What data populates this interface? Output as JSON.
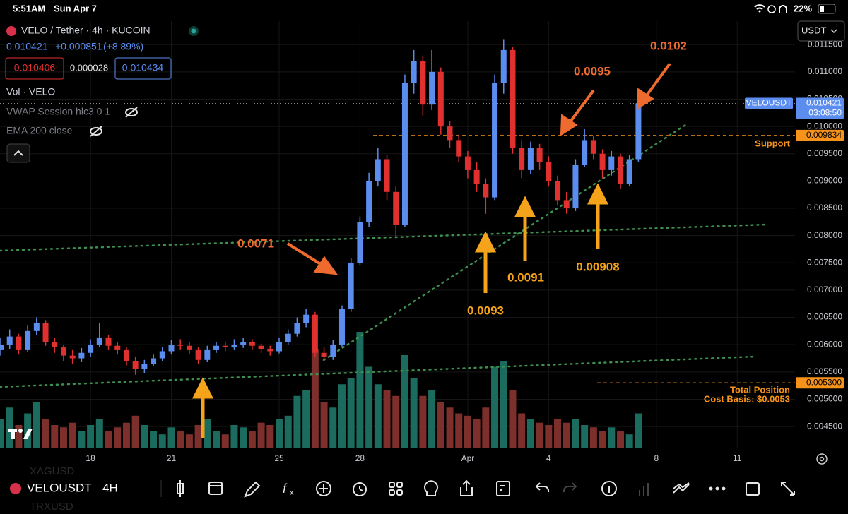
{
  "status_bar": {
    "time": "5:51AM",
    "date": "Sun Apr 7",
    "battery": "22%"
  },
  "symbol_header": {
    "title": "VELO / Tether · 4h · KUCOIN",
    "last": "0.010421",
    "change": "+0.000851",
    "change_pct": "(+8.89%)",
    "bid": "0.010406",
    "spread": "0.000028",
    "ask": "0.010434",
    "indicators": [
      "Vol · VELO",
      "VWAP Session hlc3 0 1",
      "EMA 200 close"
    ]
  },
  "currency": "USDT",
  "chart_data": {
    "type": "candlestick",
    "categories": [
      null,
      null,
      null,
      null,
      null,
      null,
      null,
      null,
      null,
      null,
      "18",
      null,
      null,
      null,
      null,
      null,
      null,
      null,
      null,
      "21",
      null,
      null,
      null,
      null,
      null,
      null,
      null,
      null,
      null,
      null,
      null,
      "25",
      null,
      null,
      null,
      null,
      null,
      null,
      null,
      null,
      "28",
      null,
      null,
      null,
      null,
      null,
      null,
      null,
      null,
      null,
      null,
      null,
      "Apr",
      null,
      null,
      null,
      null,
      null,
      null,
      null,
      null,
      "4",
      null,
      null,
      null,
      null,
      null,
      null,
      null,
      null,
      null,
      null,
      null,
      "8",
      null,
      null,
      null,
      null,
      null,
      null,
      null,
      null,
      "11"
    ],
    "open": [
      0.0059,
      0.006,
      0.00615,
      0.0059,
      0.00625,
      0.0064,
      0.00605,
      0.00595,
      0.0058,
      0.00575,
      0.00585,
      0.006,
      0.00612,
      0.00598,
      0.0059,
      0.0057,
      0.00555,
      0.00565,
      0.00575,
      0.00588,
      0.006,
      0.00598,
      0.0059,
      0.00572,
      0.0059,
      0.00598,
      0.00595,
      0.006,
      0.00605,
      0.00598,
      0.00592,
      0.00588,
      0.00605,
      0.0062,
      0.0064,
      0.00655,
      0.00585,
      0.00578,
      0.006,
      0.00665,
      0.0075,
      0.00825,
      0.009,
      0.0094,
      0.0088,
      0.0082,
      0.0108,
      0.0112,
      0.0104,
      0.011,
      0.01,
      0.00975,
      0.00945,
      0.0092,
      0.00895,
      0.0087,
      0.0108,
      0.0114,
      0.0096,
      0.0092,
      0.0096,
      0.00935,
      0.009,
      0.00865,
      0.0085,
      0.0093,
      0.00975,
      0.0095,
      0.0092,
      0.00945,
      0.00895,
      0.0094,
      null,
      null,
      null,
      null,
      null,
      null,
      null,
      null,
      null,
      null,
      null
    ],
    "high": [
      0.00612,
      0.00628,
      0.0062,
      0.00635,
      0.0065,
      0.00645,
      0.00612,
      0.006,
      0.0059,
      0.00594,
      0.0061,
      0.0064,
      0.00618,
      0.00604,
      0.00595,
      0.00578,
      0.00572,
      0.00582,
      0.00596,
      0.00608,
      0.0061,
      0.00605,
      0.00596,
      0.00598,
      0.00605,
      0.00606,
      0.0061,
      0.00612,
      0.0061,
      0.00602,
      0.00598,
      0.00612,
      0.00628,
      0.0065,
      0.00665,
      0.0066,
      0.00595,
      0.00608,
      0.00672,
      0.00758,
      0.00835,
      0.00915,
      0.0096,
      0.00948,
      0.0089,
      0.01095,
      0.0114,
      0.0113,
      0.0114,
      0.01108,
      0.0101,
      0.00985,
      0.00955,
      0.00935,
      0.00905,
      0.01095,
      0.0116,
      0.01145,
      0.00975,
      0.00972,
      0.00968,
      0.00945,
      0.0091,
      0.0088,
      0.0094,
      0.00995,
      0.00982,
      0.00958,
      0.00955,
      0.0095,
      0.00948,
      0.0105,
      null,
      null,
      null,
      null,
      null,
      null,
      null,
      null,
      null,
      null,
      null
    ],
    "low": [
      0.0058,
      0.00592,
      0.00582,
      0.00586,
      0.00618,
      0.00598,
      0.00585,
      0.0057,
      0.00565,
      0.00568,
      0.00578,
      0.00595,
      0.0059,
      0.00582,
      0.00562,
      0.00545,
      0.00548,
      0.0056,
      0.0057,
      0.00582,
      0.0059,
      0.00582,
      0.00565,
      0.00568,
      0.00585,
      0.00588,
      0.0059,
      0.00594,
      0.0059,
      0.00585,
      0.0058,
      0.00584,
      0.006,
      0.00615,
      0.00632,
      0.00578,
      0.0057,
      0.00572,
      0.00596,
      0.0066,
      0.00745,
      0.00815,
      0.0089,
      0.00865,
      0.00795,
      0.00815,
      0.0106,
      0.0102,
      0.0103,
      0.00985,
      0.0096,
      0.00935,
      0.00905,
      0.0088,
      0.0084,
      0.00865,
      0.0106,
      0.0095,
      0.00905,
      0.00912,
      0.0092,
      0.0089,
      0.00855,
      0.0084,
      0.00845,
      0.00925,
      0.0094,
      0.00905,
      0.0091,
      0.00885,
      0.0089,
      0.00935,
      null,
      null,
      null,
      null,
      null,
      null,
      null,
      null,
      null,
      null,
      null
    ],
    "close": [
      0.006,
      0.00615,
      0.0059,
      0.00625,
      0.0064,
      0.00605,
      0.00595,
      0.0058,
      0.00575,
      0.00585,
      0.006,
      0.00612,
      0.00598,
      0.0059,
      0.0057,
      0.00555,
      0.00565,
      0.00575,
      0.00588,
      0.006,
      0.00598,
      0.0059,
      0.00572,
      0.0059,
      0.00598,
      0.00595,
      0.006,
      0.00605,
      0.00598,
      0.00592,
      0.00588,
      0.00605,
      0.0062,
      0.0064,
      0.00655,
      0.00585,
      0.00578,
      0.006,
      0.00665,
      0.0075,
      0.00825,
      0.009,
      0.0094,
      0.0088,
      0.0082,
      0.0108,
      0.0112,
      0.0104,
      0.011,
      0.01,
      0.00975,
      0.00945,
      0.0092,
      0.00895,
      0.0087,
      0.0108,
      0.0114,
      0.0096,
      0.0092,
      0.0096,
      0.00935,
      0.009,
      0.00865,
      0.0085,
      0.0093,
      0.00975,
      0.0095,
      0.0092,
      0.00945,
      0.00895,
      0.0094,
      0.010421,
      null,
      null,
      null,
      null,
      null,
      null,
      null,
      null,
      null,
      null,
      null
    ],
    "volume": [
      25,
      35,
      20,
      30,
      40,
      25,
      20,
      18,
      22,
      15,
      20,
      25,
      15,
      18,
      22,
      28,
      20,
      15,
      12,
      18,
      15,
      12,
      20,
      25,
      15,
      12,
      20,
      18,
      15,
      22,
      20,
      25,
      28,
      45,
      50,
      85,
      40,
      35,
      55,
      60,
      100,
      70,
      55,
      50,
      45,
      80,
      60,
      45,
      50,
      40,
      35,
      30,
      28,
      25,
      35,
      70,
      75,
      50,
      30,
      25,
      22,
      20,
      25,
      22,
      25,
      20,
      18,
      15,
      18,
      15,
      12,
      30,
      null,
      null,
      null,
      null,
      null,
      null,
      null,
      null,
      null,
      null,
      null
    ],
    "up_color": "#5b8def",
    "down_color": "#e0302f",
    "volume_up_color": "#1b6b5e",
    "volume_down_color": "#7d2f2b",
    "ylim": [
      0.0041,
      0.0118
    ],
    "yticks": [
      {
        "value": 0.0045,
        "label": "0.004500"
      },
      {
        "value": 0.005,
        "label": "0.005000"
      },
      {
        "value": 0.0055,
        "label": "0.005500"
      },
      {
        "value": 0.006,
        "label": "0.006000"
      },
      {
        "value": 0.0065,
        "label": "0.006500"
      },
      {
        "value": 0.007,
        "label": "0.007000"
      },
      {
        "value": 0.0075,
        "label": "0.007500"
      },
      {
        "value": 0.008,
        "label": "0.008000"
      },
      {
        "value": 0.0085,
        "label": "0.008500"
      },
      {
        "value": 0.009,
        "label": "0.009000"
      },
      {
        "value": 0.0095,
        "label": "0.009500"
      },
      {
        "value": 0.01,
        "label": "0.010000"
      },
      {
        "value": 0.0105,
        "label": "0.010500"
      },
      {
        "value": 0.011,
        "label": "0.011000"
      },
      {
        "value": 0.0115,
        "label": "0.011500"
      }
    ],
    "grid": true,
    "last_price": {
      "symbol": "VELOUSDT",
      "value": 0.010421,
      "countdown": "03:08:50"
    },
    "price_lines": [
      {
        "price": 0.009834,
        "text": [
          "Support"
        ]
      },
      {
        "price": {
          "value": 0.0053,
          "label": "0.005300"
        },
        "text": [
          "Total Position",
          "Cost Basis: $0.0053"
        ]
      }
    ],
    "annotations": [
      "0.0071",
      "0.0095",
      "0.0102",
      "0.0093",
      "0.0091",
      "0.00908"
    ]
  },
  "toolbar": {
    "symbol": "VELOUSDT",
    "interval": "4H",
    "ghost_symbols": [
      "XAGUSD",
      "TRXUSD"
    ]
  }
}
